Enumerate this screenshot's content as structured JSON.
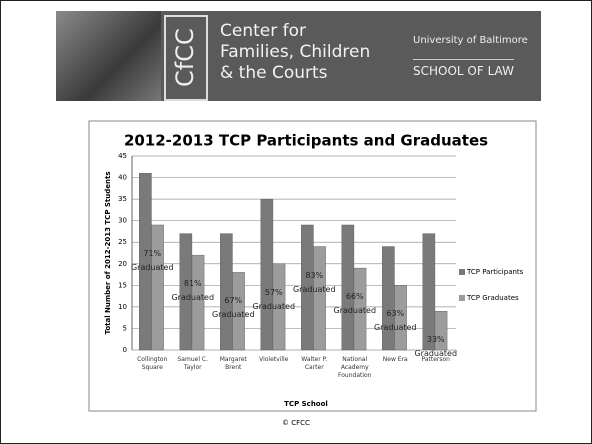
{
  "header": {
    "logo": "CfCC",
    "title_lines": [
      "Center for",
      "Families, Children",
      "& the Courts"
    ],
    "university": "University of Baltimore",
    "school": "SCHOOL OF LAW"
  },
  "footer": "© CFCC",
  "chart_data": {
    "type": "bar",
    "title": "2012-2013 TCP Participants and Graduates",
    "x_label": "TCP School",
    "y_label": "Total Number of 2012-2013 TCP Students",
    "categories": [
      "Collington Square",
      "Samuel C. Taylor",
      "Margaret Brent",
      "Violetville",
      "Walter P. Carter",
      "National Academy Foundation",
      "New Era",
      "Patterson"
    ],
    "series": [
      {
        "name": "TCP Participants",
        "color": "#7a7a7a",
        "values": [
          41,
          27,
          27,
          35,
          29,
          29,
          24,
          27
        ]
      },
      {
        "name": "TCP Graduates",
        "color": "#9c9c9c",
        "values": [
          29,
          22,
          18,
          20,
          24,
          19,
          15,
          9
        ]
      }
    ],
    "annotations": [
      "71% Graduated",
      "81% Graduated",
      "67% Graduated",
      "57% Graduated",
      "83% Graduated",
      "66% Graduated",
      "63% Graduated",
      "33% Graduated"
    ],
    "ylim": [
      0,
      45
    ],
    "yticks": [
      0,
      5,
      10,
      15,
      20,
      25,
      30,
      35,
      40,
      45
    ],
    "grid": true,
    "legend": "right"
  }
}
